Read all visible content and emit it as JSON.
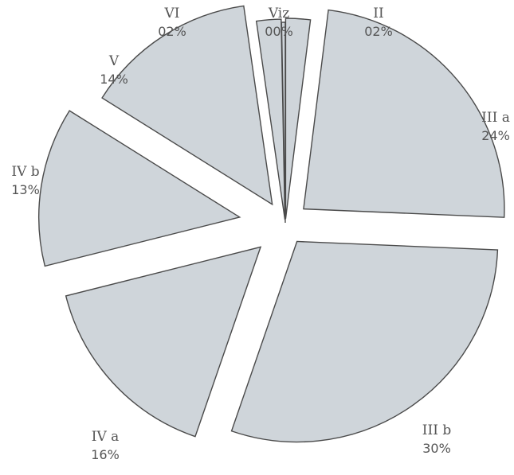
{
  "chart_data": {
    "type": "pie",
    "title": "",
    "exploded": true,
    "start_angle_deg": 0,
    "direction": "clockwise",
    "slices": [
      {
        "label": "II",
        "value_text": "02%",
        "value": 2
      },
      {
        "label": "III a",
        "value_text": "24%",
        "value": 24
      },
      {
        "label": "III b",
        "value_text": "30%",
        "value": 30
      },
      {
        "label": "IV a",
        "value_text": "16%",
        "value": 16
      },
      {
        "label": "IV b",
        "value_text": "13%",
        "value": 13
      },
      {
        "label": "V",
        "value_text": "14%",
        "value": 14
      },
      {
        "label": "VI",
        "value_text": "02%",
        "value": 2
      },
      {
        "label": "Viz",
        "value_text": "00%",
        "value": 0.3
      }
    ],
    "colors": {
      "fill": "#cfd5da",
      "stroke": "#4a4a4a",
      "label": "#555555"
    }
  }
}
